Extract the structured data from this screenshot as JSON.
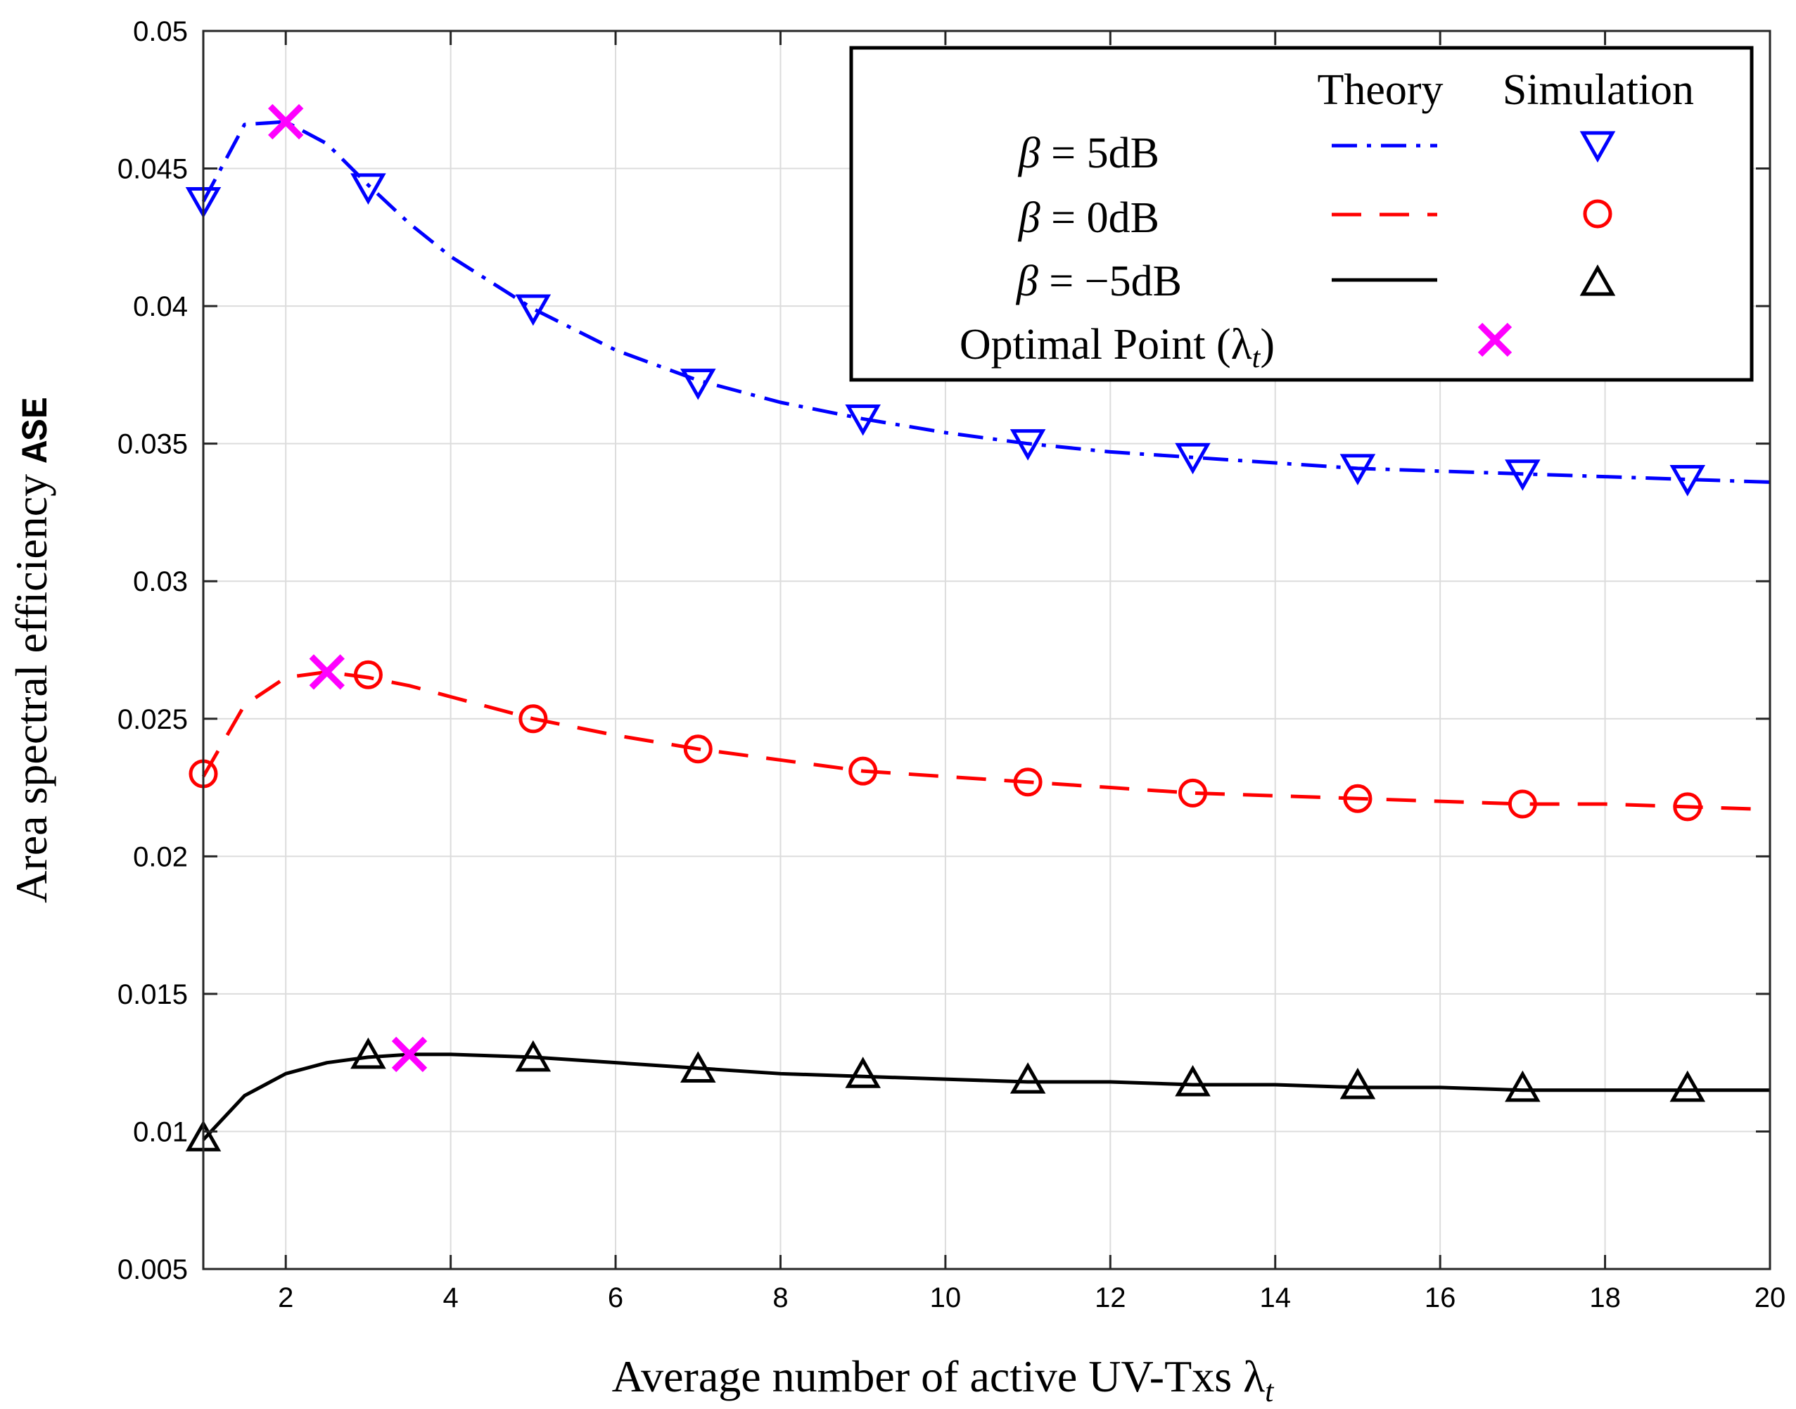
{
  "chart_data": {
    "type": "line",
    "title": "",
    "xlabel": "Average number of active UV-Txs λ",
    "xlabel_subscript": "t",
    "ylabel": "Area spectral efficiency ",
    "ylabel_mono": "ASE",
    "xlim": [
      1,
      20
    ],
    "ylim": [
      0.005,
      0.05
    ],
    "x_ticks": [
      2,
      4,
      6,
      8,
      10,
      12,
      14,
      16,
      18,
      20
    ],
    "x_tick_labels": [
      "2",
      "4",
      "6",
      "8",
      "10",
      "12",
      "14",
      "16",
      "18",
      "20"
    ],
    "y_ticks": [
      0.005,
      0.01,
      0.015,
      0.02,
      0.025,
      0.03,
      0.035,
      0.04,
      0.045,
      0.05
    ],
    "y_tick_labels": [
      "0.005",
      "0.01",
      "0.015",
      "0.02",
      "0.025",
      "0.03",
      "0.035",
      "0.04",
      "0.045",
      "0.05"
    ],
    "grid": true,
    "legend_position": "top-right",
    "legend": {
      "header_theory": "Theory",
      "header_simulation": "Simulation",
      "entries": [
        {
          "beta_symbol": "β",
          "label": " = 5dB"
        },
        {
          "beta_symbol": "β",
          "label": " = 0dB"
        },
        {
          "beta_symbol": "β",
          "label": " = −5dB"
        }
      ],
      "optimal_label": "Optimal Point (λ",
      "optimal_subscript": "t",
      "optimal_close": ")"
    },
    "series": [
      {
        "name": "β = 5dB",
        "color": "#0000ff",
        "line_style": "dashdot",
        "marker": "triangle-down",
        "theory_x": [
          1,
          1.5,
          2,
          2.5,
          3,
          3.5,
          4,
          5,
          6,
          7,
          8,
          9,
          10,
          11,
          12,
          13,
          14,
          15,
          16,
          17,
          18,
          19,
          20
        ],
        "theory_y": [
          0.0438,
          0.0466,
          0.0467,
          0.0459,
          0.0444,
          0.043,
          0.0418,
          0.0399,
          0.0384,
          0.0373,
          0.0365,
          0.0359,
          0.0354,
          0.035,
          0.0347,
          0.0345,
          0.0343,
          0.0341,
          0.034,
          0.0339,
          0.0338,
          0.0337,
          0.0336
        ],
        "sim_x": [
          1,
          3,
          5,
          7,
          9,
          11,
          13,
          15,
          17,
          19
        ],
        "sim_y": [
          0.0438,
          0.0443,
          0.0399,
          0.0372,
          0.0359,
          0.035,
          0.0345,
          0.0341,
          0.0339,
          0.0337
        ]
      },
      {
        "name": "β = 0dB",
        "color": "#ff0000",
        "line_style": "dashed",
        "marker": "circle",
        "theory_x": [
          1,
          1.5,
          2,
          2.5,
          3,
          3.5,
          4,
          5,
          6,
          7,
          8,
          9,
          10,
          11,
          12,
          13,
          14,
          15,
          16,
          17,
          18,
          19,
          20
        ],
        "theory_y": [
          0.0229,
          0.0255,
          0.0265,
          0.0267,
          0.0265,
          0.0262,
          0.0258,
          0.025,
          0.0244,
          0.0239,
          0.0235,
          0.0231,
          0.0229,
          0.0227,
          0.0225,
          0.0223,
          0.0222,
          0.0221,
          0.022,
          0.0219,
          0.0219,
          0.0218,
          0.0217
        ],
        "sim_x": [
          1,
          3,
          5,
          7,
          9,
          11,
          13,
          15,
          17,
          19
        ],
        "sim_y": [
          0.023,
          0.0266,
          0.025,
          0.0239,
          0.0231,
          0.0227,
          0.0223,
          0.0221,
          0.0219,
          0.0218
        ]
      },
      {
        "name": "β = −5dB",
        "color": "#000000",
        "line_style": "solid",
        "marker": "triangle-up",
        "theory_x": [
          1,
          1.5,
          2,
          2.5,
          3,
          3.5,
          4,
          5,
          6,
          7,
          8,
          9,
          10,
          11,
          12,
          13,
          14,
          15,
          16,
          17,
          18,
          19,
          20
        ],
        "theory_y": [
          0.0097,
          0.0113,
          0.0121,
          0.0125,
          0.0127,
          0.0128,
          0.0128,
          0.0127,
          0.0125,
          0.0123,
          0.0121,
          0.012,
          0.0119,
          0.0118,
          0.0118,
          0.0117,
          0.0117,
          0.0116,
          0.0116,
          0.0115,
          0.0115,
          0.0115,
          0.0115
        ],
        "sim_x": [
          1,
          3,
          5,
          7,
          9,
          11,
          13,
          15,
          17,
          19
        ],
        "sim_y": [
          0.0098,
          0.0128,
          0.0127,
          0.0123,
          0.0121,
          0.0119,
          0.0118,
          0.0117,
          0.0116,
          0.0116
        ]
      }
    ],
    "optimal_points": {
      "name": "Optimal Point (λ_t)",
      "color": "#ff00ff",
      "marker": "x",
      "x": [
        2,
        2.5,
        3.5
      ],
      "y": [
        0.0467,
        0.0267,
        0.0128
      ]
    }
  }
}
